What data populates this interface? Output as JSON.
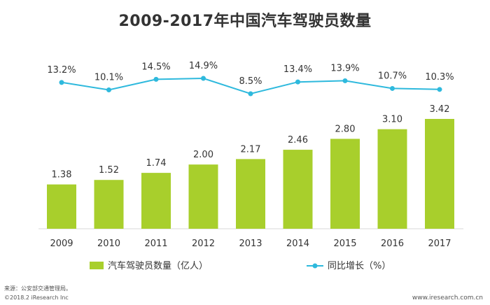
{
  "chart_data": {
    "type": "bar+line",
    "title": "2009-2017年中国汽车驾驶员数量",
    "categories": [
      "2009",
      "2010",
      "2011",
      "2012",
      "2013",
      "2014",
      "2015",
      "2016",
      "2017"
    ],
    "series": [
      {
        "name": "汽车驾驶员数量（亿人）",
        "type": "bar",
        "values": [
          1.38,
          1.52,
          1.74,
          2.0,
          2.17,
          2.46,
          2.8,
          3.1,
          3.42
        ],
        "labels": [
          "1.38",
          "1.52",
          "1.74",
          "2.00",
          "2.17",
          "2.46",
          "2.80",
          "3.10",
          "3.42"
        ],
        "color": "#a8cf2c"
      },
      {
        "name": "同比增长（%）",
        "type": "line",
        "values": [
          13.2,
          10.1,
          14.5,
          14.9,
          8.5,
          13.4,
          13.9,
          10.7,
          10.3
        ],
        "labels": [
          "13.2%",
          "10.1%",
          "14.5%",
          "14.9%",
          "8.5%",
          "13.4%",
          "13.9%",
          "10.7%",
          "10.3%"
        ],
        "color": "#2eb9dd"
      }
    ],
    "ylim_bar": [
      0,
      3.6
    ],
    "legend_position": "bottom-center",
    "grid": false
  },
  "footer": {
    "source": "来源：公安部交通管理局。",
    "copyright": "©2018.2 iResearch Inc",
    "url": "www.iresearch.com.cn"
  }
}
